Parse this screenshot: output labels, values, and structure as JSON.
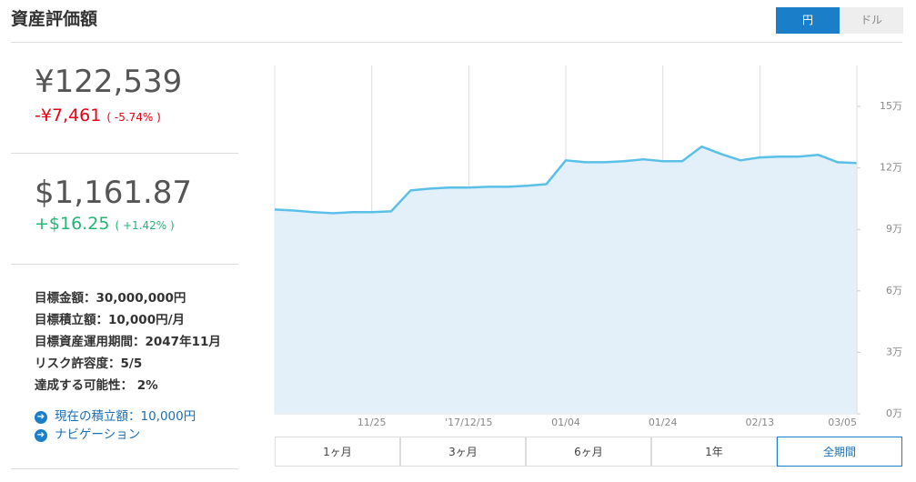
{
  "header": {
    "title": "資産評価額",
    "currency_toggle": [
      "円",
      "ドル"
    ]
  },
  "summary": {
    "jpy": {
      "value": "¥122,539",
      "change": "-¥7,461",
      "change_pct": "( -5.74% )"
    },
    "usd": {
      "value": "$1,161.87",
      "change": "+$16.25",
      "change_pct": "( +1.42% )"
    }
  },
  "goals": [
    "目標金額：30,000,000円",
    "目標積立額：10,000円/月",
    "目標資産運用期間：2047年11月",
    "リスク許容度：5/5",
    "達成する可能性： 2%"
  ],
  "links": [
    "現在の積立額：10,000円",
    "ナビゲーション"
  ],
  "ranges": [
    "1ヶ月",
    "3ヶ月",
    "6ヶ月",
    "1年",
    "全期間"
  ],
  "chart_data": {
    "type": "area",
    "color": "#5bc0e8",
    "categories": [
      null,
      null,
      null,
      null,
      null,
      "11/25",
      null,
      null,
      null,
      null,
      "'17/12/15",
      null,
      null,
      null,
      null,
      "01/04",
      null,
      null,
      null,
      null,
      "01/24",
      null,
      null,
      null,
      null,
      "02/13",
      null,
      null,
      null,
      null,
      "03/05"
    ],
    "values": [
      99700,
      99200,
      98400,
      97900,
      98400,
      98400,
      98800,
      109000,
      109900,
      110400,
      110400,
      110800,
      110800,
      111300,
      112100,
      123700,
      122800,
      122800,
      123300,
      124200,
      123300,
      123300,
      130400,
      126800,
      123700,
      125100,
      125500,
      125500,
      126400,
      122800,
      122400
    ],
    "ylim": [
      0,
      170000
    ],
    "yticks": [
      {
        "value": 0,
        "label": "0万"
      },
      {
        "value": 30000,
        "label": "3万"
      },
      {
        "value": 60000,
        "label": "6万"
      },
      {
        "value": 90000,
        "label": "9万"
      },
      {
        "value": 120000,
        "label": "12万"
      },
      {
        "value": 150000,
        "label": "15万"
      }
    ],
    "y_axis": "right",
    "grid": true
  }
}
